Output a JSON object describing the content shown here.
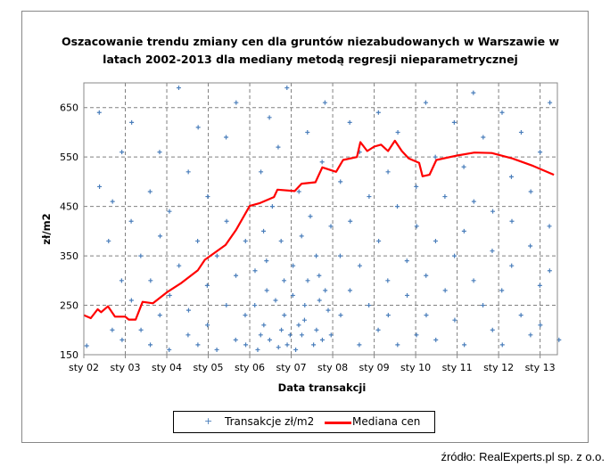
{
  "chart_data": {
    "type": "scatter",
    "title": "Oszacowanie trendu zmiany cen dla gruntów niezabudowanych w Warszawie w latach 2002-2013  dla mediany metodą regresji nieparametrycznej",
    "title_lines": [
      "Oszacowanie trendu zmiany cen dla gruntów  niezabudowanych w Warszawie w",
      "latach 2002-2013  dla mediany metodą regresji nieparametrycznej"
    ],
    "xlabel": "Data transakcji",
    "ylabel": "zł/m2",
    "xlim": [
      "2002-01",
      "2013-06"
    ],
    "ylim": [
      150,
      700
    ],
    "x_ticks": [
      "sty 02",
      "sty 03",
      "sty 04",
      "sty 05",
      "sty 06",
      "sty 07",
      "sty 08",
      "sty 09",
      "sty 10",
      "sty 11",
      "sty 12",
      "sty 13"
    ],
    "x_tick_dates": [
      "2002-01",
      "2003-01",
      "2004-01",
      "2005-01",
      "2006-01",
      "2007-01",
      "2008-01",
      "2009-01",
      "2010-01",
      "2011-01",
      "2012-01",
      "2013-01"
    ],
    "y_ticks": [
      150,
      250,
      350,
      450,
      550,
      650
    ],
    "grid": "dashed, both axes",
    "legend_position": "bottom",
    "colors": {
      "scatter": "#4a7ebb",
      "median": "#ff0000",
      "grid": "#808080"
    },
    "series": [
      {
        "name": "Transakcje zł/m2",
        "marker": "plus",
        "points": [
          [
            "2002-03",
            168
          ],
          [
            "2002-05",
            640
          ],
          [
            "2002-06",
            490
          ],
          [
            "2002-07",
            380
          ],
          [
            "2002-09",
            200
          ],
          [
            "2002-10",
            460
          ],
          [
            "2002-11",
            300
          ],
          [
            "2002-12",
            560
          ],
          [
            "2003-01",
            180
          ],
          [
            "2003-02",
            420
          ],
          [
            "2003-03",
            260
          ],
          [
            "2003-04",
            620
          ],
          [
            "2003-05",
            350
          ],
          [
            "2003-06",
            200
          ],
          [
            "2003-07",
            480
          ],
          [
            "2003-08",
            170
          ],
          [
            "2003-09",
            300
          ],
          [
            "2003-10",
            560
          ],
          [
            "2003-11",
            230
          ],
          [
            "2003-12",
            390
          ],
          [
            "2004-01",
            160
          ],
          [
            "2004-02",
            440
          ],
          [
            "2004-03",
            270
          ],
          [
            "2004-04",
            690
          ],
          [
            "2004-05",
            330
          ],
          [
            "2004-06",
            190
          ],
          [
            "2004-07",
            520
          ],
          [
            "2004-08",
            240
          ],
          [
            "2004-09",
            380
          ],
          [
            "2004-10",
            170
          ],
          [
            "2004-11",
            610
          ],
          [
            "2004-12",
            290
          ],
          [
            "2005-01",
            210
          ],
          [
            "2005-02",
            470
          ],
          [
            "2005-03",
            160
          ],
          [
            "2005-04",
            350
          ],
          [
            "2005-05",
            590
          ],
          [
            "2005-06",
            250
          ],
          [
            "2005-07",
            420
          ],
          [
            "2005-08",
            180
          ],
          [
            "2005-09",
            310
          ],
          [
            "2005-10",
            660
          ],
          [
            "2005-11",
            230
          ],
          [
            "2005-12",
            380
          ],
          [
            "2006-01",
            170
          ],
          [
            "2006-02",
            250
          ],
          [
            "2006-03",
            320
          ],
          [
            "2006-03",
            190
          ],
          [
            "2006-04",
            520
          ],
          [
            "2006-04",
            160
          ],
          [
            "2006-05",
            280
          ],
          [
            "2006-05",
            400
          ],
          [
            "2006-06",
            210
          ],
          [
            "2006-06",
            630
          ],
          [
            "2006-07",
            180
          ],
          [
            "2006-07",
            340
          ],
          [
            "2006-08",
            260
          ],
          [
            "2006-08",
            450
          ],
          [
            "2006-09",
            200
          ],
          [
            "2006-09",
            570
          ],
          [
            "2006-10",
            165
          ],
          [
            "2006-10",
            300
          ],
          [
            "2006-11",
            230
          ],
          [
            "2006-11",
            380
          ],
          [
            "2006-12",
            190
          ],
          [
            "2006-12",
            690
          ],
          [
            "2007-01",
            170
          ],
          [
            "2007-01",
            270
          ],
          [
            "2007-02",
            330
          ],
          [
            "2007-02",
            210
          ],
          [
            "2007-03",
            480
          ],
          [
            "2007-03",
            160
          ],
          [
            "2007-04",
            250
          ],
          [
            "2007-04",
            390
          ],
          [
            "2007-05",
            190
          ],
          [
            "2007-05",
            600
          ],
          [
            "2007-06",
            300
          ],
          [
            "2007-06",
            220
          ],
          [
            "2007-07",
            170
          ],
          [
            "2007-07",
            430
          ],
          [
            "2007-08",
            260
          ],
          [
            "2007-08",
            350
          ],
          [
            "2007-09",
            200
          ],
          [
            "2007-09",
            540
          ],
          [
            "2007-10",
            180
          ],
          [
            "2007-10",
            310
          ],
          [
            "2007-11",
            240
          ],
          [
            "2007-11",
            660
          ],
          [
            "2007-12",
            280
          ],
          [
            "2007-12",
            410
          ],
          [
            "2008-01",
            190
          ],
          [
            "2008-02",
            350
          ],
          [
            "2008-03",
            500
          ],
          [
            "2008-04",
            230
          ],
          [
            "2008-05",
            620
          ],
          [
            "2008-06",
            280
          ],
          [
            "2008-07",
            420
          ],
          [
            "2008-08",
            170
          ],
          [
            "2008-09",
            560
          ],
          [
            "2008-10",
            330
          ],
          [
            "2008-11",
            250
          ],
          [
            "2008-12",
            470
          ],
          [
            "2009-01",
            200
          ],
          [
            "2009-02",
            640
          ],
          [
            "2009-03",
            380
          ],
          [
            "2009-04",
            300
          ],
          [
            "2009-05",
            520
          ],
          [
            "2009-06",
            230
          ],
          [
            "2009-07",
            450
          ],
          [
            "2009-08",
            170
          ],
          [
            "2009-09",
            600
          ],
          [
            "2009-10",
            340
          ],
          [
            "2009-11",
            270
          ],
          [
            "2009-12",
            490
          ],
          [
            "2010-01",
            190
          ],
          [
            "2010-02",
            410
          ],
          [
            "2010-03",
            660
          ],
          [
            "2010-04",
            310
          ],
          [
            "2010-05",
            230
          ],
          [
            "2010-06",
            550
          ],
          [
            "2010-07",
            380
          ],
          [
            "2010-08",
            180
          ],
          [
            "2010-09",
            470
          ],
          [
            "2010-10",
            280
          ],
          [
            "2010-11",
            620
          ],
          [
            "2010-12",
            350
          ],
          [
            "2011-01",
            220
          ],
          [
            "2011-02",
            530
          ],
          [
            "2011-03",
            400
          ],
          [
            "2011-04",
            170
          ],
          [
            "2011-05",
            680
          ],
          [
            "2011-06",
            300
          ],
          [
            "2011-07",
            460
          ],
          [
            "2011-08",
            250
          ],
          [
            "2011-09",
            590
          ],
          [
            "2011-10",
            360
          ],
          [
            "2011-11",
            200
          ],
          [
            "2011-12",
            440
          ],
          [
            "2012-01",
            280
          ],
          [
            "2012-02",
            640
          ],
          [
            "2012-03",
            170
          ],
          [
            "2012-04",
            510
          ],
          [
            "2012-05",
            330
          ],
          [
            "2012-06",
            420
          ],
          [
            "2012-07",
            230
          ],
          [
            "2012-08",
            600
          ],
          [
            "2012-09",
            370
          ],
          [
            "2012-10",
            190
          ],
          [
            "2012-11",
            480
          ],
          [
            "2012-12",
            290
          ],
          [
            "2013-01",
            560
          ],
          [
            "2013-02",
            210
          ],
          [
            "2013-03",
            410
          ],
          [
            "2013-04",
            320
          ],
          [
            "2013-05",
            660
          ],
          [
            "2013-06",
            180
          ]
        ]
      },
      {
        "name": "Mediana cen",
        "line": true,
        "points": [
          [
            "2002-01",
            230
          ],
          [
            "2002-03",
            224
          ],
          [
            "2002-05",
            242
          ],
          [
            "2002-06",
            236
          ],
          [
            "2002-08",
            248
          ],
          [
            "2002-10",
            227
          ],
          [
            "2003-01",
            227
          ],
          [
            "2003-02",
            221
          ],
          [
            "2003-04",
            221
          ],
          [
            "2003-06",
            257
          ],
          [
            "2003-09",
            254
          ],
          [
            "2004-01",
            276
          ],
          [
            "2004-05",
            294
          ],
          [
            "2004-10",
            321
          ],
          [
            "2004-12",
            342
          ],
          [
            "2005-06",
            372
          ],
          [
            "2005-09",
            402
          ],
          [
            "2006-01",
            451
          ],
          [
            "2006-04",
            457
          ],
          [
            "2006-08",
            469
          ],
          [
            "2006-09",
            484
          ],
          [
            "2007-02",
            481
          ],
          [
            "2007-04",
            496
          ],
          [
            "2007-08",
            499
          ],
          [
            "2007-10",
            529
          ],
          [
            "2008-02",
            520
          ],
          [
            "2008-04",
            544
          ],
          [
            "2008-08",
            550
          ],
          [
            "2008-09",
            580
          ],
          [
            "2008-11",
            562
          ],
          [
            "2009-01",
            571
          ],
          [
            "2009-03",
            575
          ],
          [
            "2009-05",
            562
          ],
          [
            "2009-07",
            583
          ],
          [
            "2009-09",
            562
          ],
          [
            "2009-11",
            547
          ],
          [
            "2010-02",
            538
          ],
          [
            "2010-03",
            511
          ],
          [
            "2010-05",
            514
          ],
          [
            "2010-07",
            544
          ],
          [
            "2011-01",
            553
          ],
          [
            "2011-06",
            559
          ],
          [
            "2011-11",
            558
          ],
          [
            "2012-05",
            547
          ],
          [
            "2012-11",
            532
          ],
          [
            "2013-05",
            514
          ]
        ]
      }
    ]
  },
  "legend": {
    "items": [
      "Transakcje zł/m2",
      "Mediana cen"
    ]
  },
  "source": "źródło: RealExperts.pl sp. z o.o."
}
